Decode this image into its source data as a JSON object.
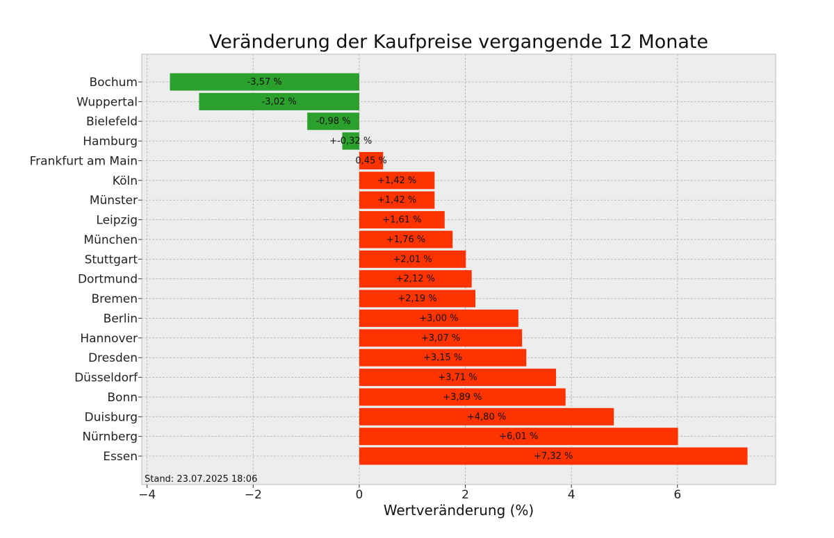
{
  "chart_data": {
    "type": "bar",
    "orientation": "horizontal",
    "title": "Veränderung der Kaufpreise vergangende 12 Monate",
    "xlabel": "Wertveränderung (%)",
    "ylabel": "",
    "xlim": [
      -4.1,
      7.85
    ],
    "xticks": [
      -4,
      -2,
      0,
      2,
      4,
      6
    ],
    "xtick_labels": [
      "−4",
      "−2",
      "0",
      "2",
      "4",
      "6"
    ],
    "grid": true,
    "categories": [
      "Bochum",
      "Wuppertal",
      "Bielefeld",
      "Hamburg",
      "Frankfurt am Main",
      "Köln",
      "Münster",
      "Leipzig",
      "München",
      "Stuttgart",
      "Dortmund",
      "Bremen",
      "Berlin",
      "Hannover",
      "Dresden",
      "Düsseldorf",
      "Bonn",
      "Duisburg",
      "Nürnberg",
      "Essen"
    ],
    "values": [
      -3.57,
      -3.02,
      -0.98,
      -0.32,
      0.45,
      1.42,
      1.42,
      1.61,
      1.76,
      2.01,
      2.12,
      2.19,
      3.0,
      3.07,
      3.15,
      3.71,
      3.89,
      4.8,
      6.01,
      7.32
    ],
    "value_labels": [
      "-3,57 %",
      "-3,02 %",
      "-0,98 %",
      "+-0,32 %",
      "0,45 %",
      "+1,42 %",
      "+1,42 %",
      "+1,61 %",
      "+1,76 %",
      "+2,01 %",
      "+2,12 %",
      "+2,19 %",
      "+3,00 %",
      "+3,07 %",
      "+3,15 %",
      "+3,71 %",
      "+3,89 %",
      "+4,80 %",
      "+6,01 %",
      "+7,32 %"
    ],
    "colors": {
      "negative": "#2ca02c",
      "positive": "#ff3300",
      "plot_background": "#ededed",
      "grid": "#b0b0b0"
    },
    "footnote": "Stand: 23.07.2025 18:06"
  }
}
